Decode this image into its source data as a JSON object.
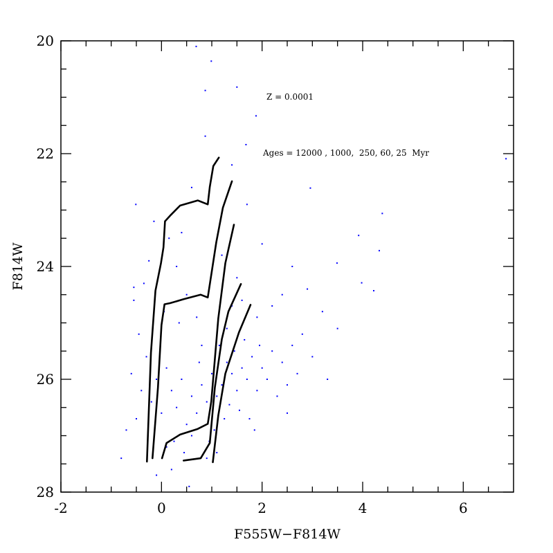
{
  "chart_data": {
    "type": "scatter",
    "x_label": "F555W−F814W",
    "y_label": "F814W",
    "annotations": [
      "Z = 0.0001",
      "Ages = 12000 , 1000,  250, 60, 25  Myr"
    ],
    "xlim": [
      -2,
      7
    ],
    "ylim": [
      20,
      28
    ],
    "y_inverted": true,
    "xticks": [
      -2,
      0,
      2,
      4,
      6
    ],
    "yticks": [
      20,
      22,
      24,
      26,
      28
    ],
    "xminorticks": [
      -1.5,
      -1,
      -0.5,
      0.5,
      1,
      1.5,
      2.5,
      3,
      3.5,
      4.5,
      5,
      5.5,
      6.5
    ],
    "yminorticks": [
      20.5,
      21,
      21.5,
      22.5,
      23,
      23.5,
      24.5,
      25,
      25.5,
      26.5,
      27,
      27.5
    ],
    "points": {
      "color": "#0000ff",
      "x": [
        1.2,
        1.4,
        1.1,
        1.5,
        1.3,
        1.6,
        0.9,
        1.7,
        1.0,
        1.35,
        1.8,
        1.25,
        0.8,
        1.9,
        1.45,
        0.7,
        2.0,
        1.55,
        0.6,
        2.1,
        1.15,
        0.5,
        2.2,
        1.05,
        0.4,
        1.65,
        0.3,
        2.3,
        0.95,
        1.75,
        0.2,
        2.4,
        0.1,
        1.3,
        0.0,
        2.5,
        -0.1,
        0.6,
        2.6,
        -0.2,
        0.8,
        2.7,
        -0.3,
        0.45,
        1.9,
        -0.4,
        0.25,
        2.8,
        -0.5,
        0.7,
        3.0,
        -0.6,
        0.1,
        1.6,
        -0.7,
        0.35,
        2.2,
        -0.45,
        0.5,
        3.2,
        -0.55,
        0.05,
        1.5,
        -0.35,
        0.3,
        2.4,
        -0.25,
        0.15,
        1.2,
        -0.15,
        0.4,
        2.0,
        1.7,
        0.6,
        1.4,
        2.6,
        3.5,
        2.9,
        -0.8,
        0.9,
        0.2,
        1.1,
        -0.1,
        0.55,
        2.5,
        3.3,
        1.85,
        0.75,
        1.95,
        1.4,
        0.99,
        1.5,
        0.87,
        0.87,
        1.88,
        1.68,
        2.96,
        3.92,
        4.39,
        4.33,
        3.98,
        4.22,
        6.85,
        0.69,
        -0.51,
        -0.55,
        3.49
      ],
      "y": [
        26.1,
        25.9,
        26.3,
        26.2,
        25.7,
        25.8,
        26.4,
        26.0,
        25.9,
        26.45,
        25.6,
        26.7,
        26.1,
        26.2,
        25.5,
        26.6,
        25.8,
        26.55,
        26.3,
        26.0,
        25.4,
        26.8,
        25.5,
        26.9,
        26.0,
        25.3,
        26.5,
        26.3,
        27.1,
        26.7,
        26.2,
        25.7,
        25.8,
        25.1,
        26.6,
        26.1,
        26.0,
        27.0,
        25.4,
        26.4,
        25.4,
        25.9,
        25.6,
        27.3,
        24.9,
        26.2,
        27.1,
        25.2,
        26.7,
        24.9,
        25.6,
        25.9,
        27.2,
        24.6,
        26.9,
        25.0,
        24.7,
        25.2,
        24.5,
        24.8,
        24.6,
        24.8,
        24.2,
        24.3,
        24.0,
        24.5,
        23.9,
        23.5,
        23.8,
        23.2,
        23.4,
        23.6,
        22.9,
        22.6,
        22.2,
        24.0,
        25.1,
        24.4,
        27.4,
        27.4,
        27.6,
        27.3,
        27.7,
        27.9,
        26.6,
        26.0,
        26.9,
        25.7,
        25.4,
        24.7,
        20.36,
        20.82,
        20.88,
        21.69,
        21.33,
        21.84,
        22.61,
        23.45,
        23.06,
        23.72,
        24.29,
        24.43,
        22.09,
        20.1,
        22.9,
        24.37,
        23.94
      ]
    },
    "lines": [
      {
        "color": "#000000",
        "x": [
          -0.29,
          -0.21,
          -0.12,
          -0.01,
          0.04,
          0.07,
          0.17,
          0.37,
          0.72,
          0.92,
          0.96,
          1.03,
          1.14
        ],
        "y": [
          27.46,
          25.53,
          24.43,
          23.94,
          23.66,
          23.2,
          23.1,
          22.92,
          22.83,
          22.9,
          22.59,
          22.22,
          22.07
        ]
      },
      {
        "color": "#000000",
        "x": [
          -0.18,
          -0.07,
          0.0,
          0.06,
          0.17,
          0.44,
          0.78,
          0.92,
          1.09,
          1.22,
          1.4
        ],
        "y": [
          27.4,
          26.15,
          25.04,
          24.67,
          24.65,
          24.58,
          24.5,
          24.55,
          23.57,
          22.96,
          22.49
        ]
      },
      {
        "color": "#000000",
        "x": [
          0.01,
          0.1,
          0.37,
          0.72,
          0.92,
          0.99,
          1.13,
          1.27,
          1.44
        ],
        "y": [
          27.4,
          27.13,
          26.98,
          26.88,
          26.79,
          26.39,
          24.92,
          23.94,
          23.26
        ]
      },
      {
        "color": "#000000",
        "x": [
          0.44,
          0.78,
          0.96,
          1.06,
          1.2,
          1.33,
          1.58
        ],
        "y": [
          27.44,
          27.4,
          27.13,
          26.15,
          25.29,
          24.8,
          24.31
        ]
      },
      {
        "color": "#000000",
        "x": [
          1.02,
          1.13,
          1.27,
          1.54,
          1.77
        ],
        "y": [
          27.47,
          26.64,
          25.9,
          25.17,
          24.68
        ]
      }
    ]
  }
}
